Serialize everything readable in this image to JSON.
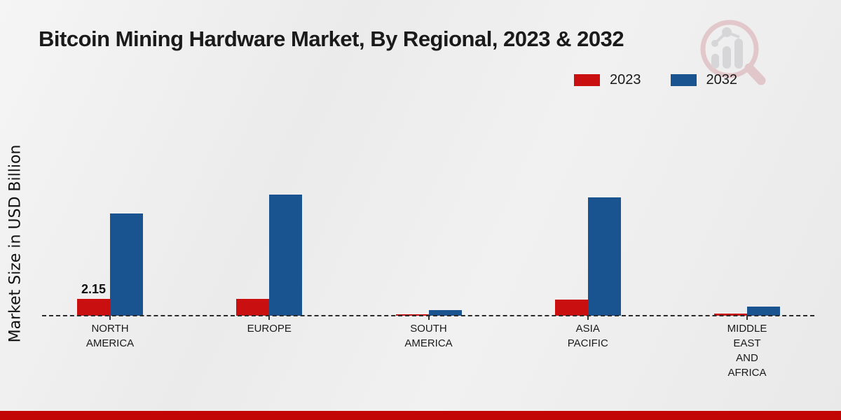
{
  "page": {
    "background_color": "#eeeeee",
    "footer_bar_color": "#c20505"
  },
  "header": {
    "title": "Bitcoin Mining Hardware Market, By Regional, 2023 & 2032"
  },
  "watermark": {
    "name": "magnifier-bar-chart-logo",
    "ring_color": "#d9a9ad",
    "bars_color": "#c3c3c7"
  },
  "legend": {
    "items": [
      {
        "label": "2023",
        "color": "#c90f0f"
      },
      {
        "label": "2032",
        "color": "#1a5490"
      }
    ]
  },
  "chart_data": {
    "type": "bar",
    "title": "Bitcoin Mining Hardware Market, By Regional, 2023 & 2032",
    "xlabel": "",
    "ylabel": "Market Size in USD Billion",
    "categories": [
      "NORTH AMERICA",
      "EUROPE",
      "SOUTH AMERICA",
      "ASIA PACIFIC",
      "MIDDLE EAST AND AFRICA"
    ],
    "category_display": [
      "NORTH\nAMERICA",
      "EUROPE",
      "SOUTH\nAMERICA",
      "ASIA\nPACIFIC",
      "MIDDLE\nEAST\nAND\nAFRICA"
    ],
    "series": [
      {
        "name": "2023",
        "color": "#c90f0f",
        "values": [
          2.15,
          2.13,
          0.18,
          2.1,
          0.27
        ]
      },
      {
        "name": "2032",
        "color": "#1a5490",
        "values": [
          13.1,
          15.5,
          0.7,
          15.1,
          1.17
        ]
      }
    ],
    "annotations": [
      {
        "text": "2.15",
        "series": "2023",
        "category_index": 0
      }
    ],
    "baseline": {
      "style": "dashed",
      "color": "#2b2b2b",
      "value": 0
    },
    "grid": false,
    "legend_position": "top-right",
    "ylim": [
      0,
      16.5
    ],
    "units": "USD Billion"
  }
}
